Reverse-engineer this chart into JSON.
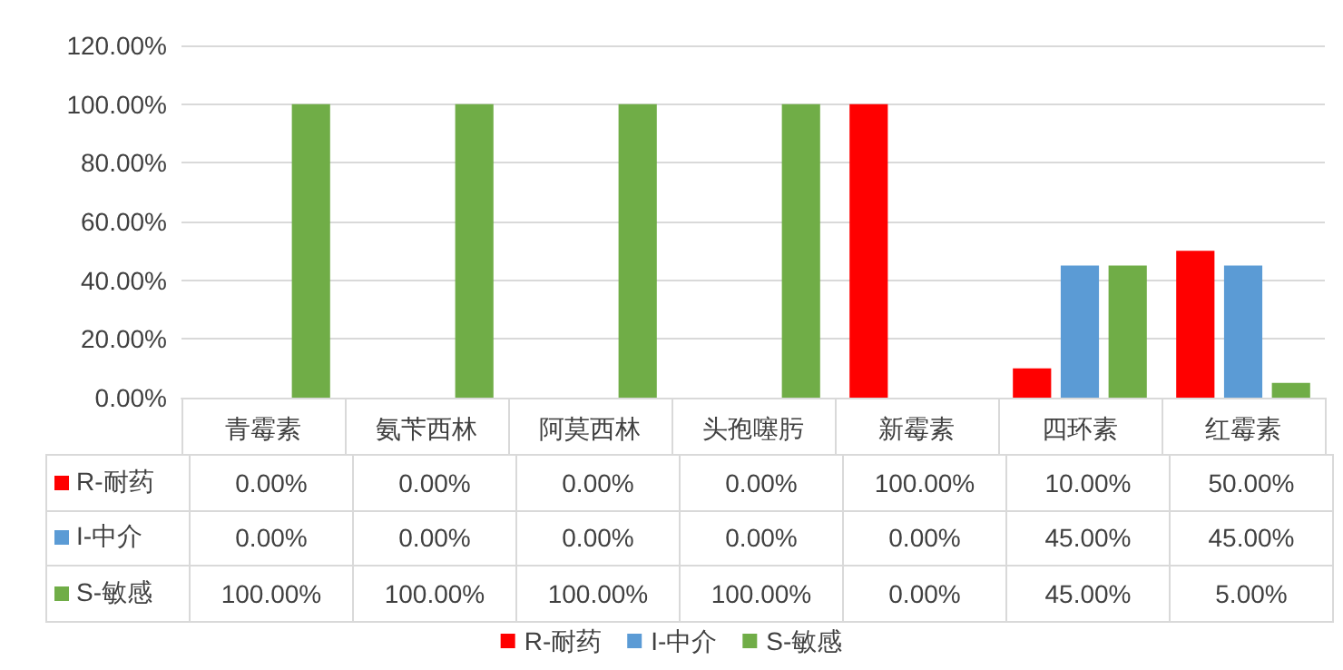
{
  "chart_data": {
    "type": "bar",
    "categories": [
      "青霉素",
      "氨苄西林",
      "阿莫西林",
      "头孢噻肟",
      "新霉素",
      "四环素",
      "红霉素"
    ],
    "series": [
      {
        "name": "R-耐药",
        "color": "#ff0000",
        "values": [
          0,
          0,
          0,
          0,
          100,
          10,
          50
        ],
        "value_labels": [
          "0.00%",
          "0.00%",
          "0.00%",
          "0.00%",
          "100.00%",
          "10.00%",
          "50.00%"
        ]
      },
      {
        "name": "I-中介",
        "color": "#5b9bd5",
        "values": [
          0,
          0,
          0,
          0,
          0,
          45,
          45
        ],
        "value_labels": [
          "0.00%",
          "0.00%",
          "0.00%",
          "0.00%",
          "0.00%",
          "45.00%",
          "45.00%"
        ]
      },
      {
        "name": "S-敏感",
        "color": "#70ad47",
        "values": [
          100,
          100,
          100,
          100,
          0,
          45,
          5
        ],
        "value_labels": [
          "100.00%",
          "100.00%",
          "100.00%",
          "100.00%",
          "0.00%",
          "45.00%",
          "5.00%"
        ]
      }
    ],
    "ylim": [
      0,
      120
    ],
    "yticks": [
      {
        "value": 0,
        "label": "0.00%"
      },
      {
        "value": 20,
        "label": "20.00%"
      },
      {
        "value": 40,
        "label": "40.00%"
      },
      {
        "value": 60,
        "label": "60.00%"
      },
      {
        "value": 80,
        "label": "80.00%"
      },
      {
        "value": 100,
        "label": "100.00%"
      },
      {
        "value": 120,
        "label": "120.00%"
      }
    ],
    "grid": "y",
    "legend": "bottom"
  }
}
